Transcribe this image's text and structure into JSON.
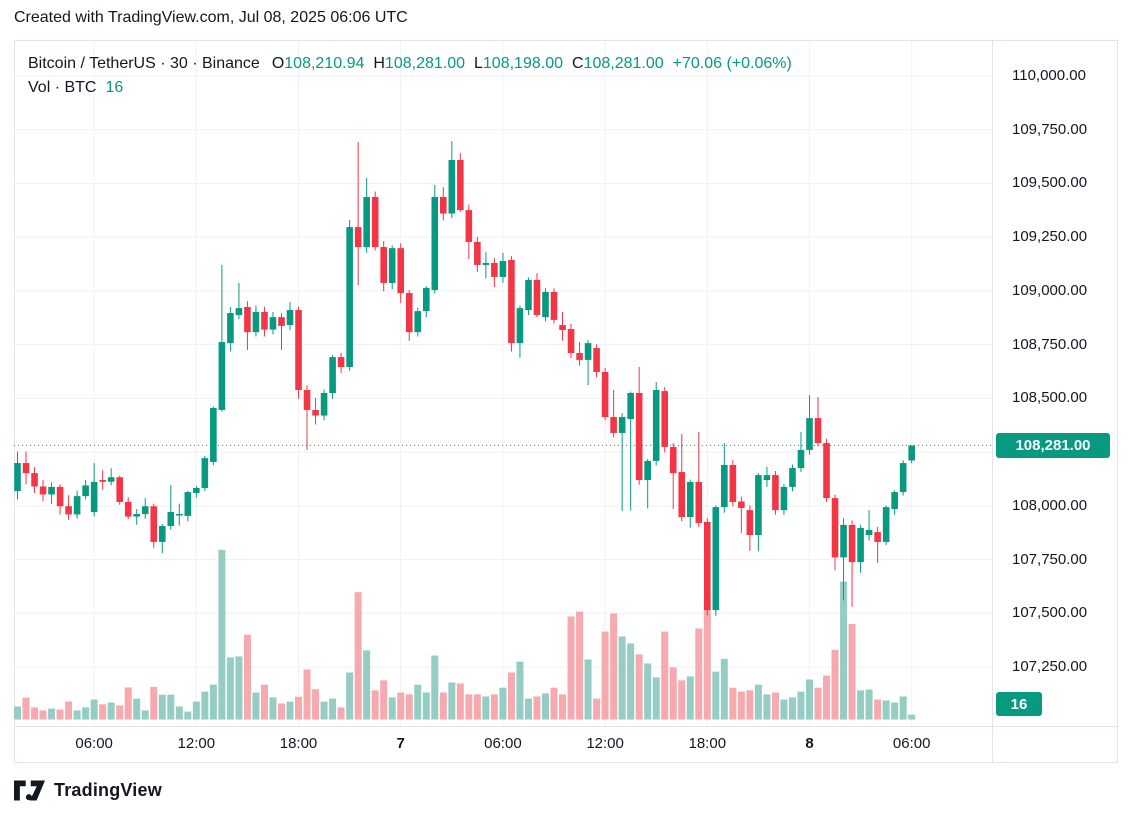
{
  "header": {
    "credit": "Created with TradingView.com, Jul 08, 2025 06:06 UTC"
  },
  "legend": {
    "symbol": "Bitcoin / TetherUS · 30 · Binance",
    "ohlc": [
      {
        "label": "O",
        "value": "108,210.94"
      },
      {
        "label": "H",
        "value": "108,281.00"
      },
      {
        "label": "L",
        "value": "108,198.00"
      },
      {
        "label": "C",
        "value": "108,281.00"
      }
    ],
    "change": "+70.06 (+0.06%)",
    "volume_label": "Vol · BTC",
    "volume_value": "16"
  },
  "footer": {
    "brand": "TradingView"
  },
  "colors": {
    "up": "#089981",
    "down": "#F23645",
    "vol_up": "#95CDC5",
    "vol_down": "#F6A9AE",
    "grid": "#F1F1F4",
    "axis_border": "#E0E3EB",
    "text": "#131722",
    "badge_bg": "#089981",
    "badge_text": "#FFFFFF"
  },
  "chart_data": {
    "type": "candlestick",
    "title": "Bitcoin / TetherUS",
    "interval": "30",
    "exchange": "Binance",
    "volume_unit": "BTC",
    "last_price": 108281.0,
    "last_price_label": "108,281.00",
    "last_volume": 16,
    "last_volume_label": "16",
    "ohlc_last": {
      "o": 108210.94,
      "h": 108281.0,
      "l": 108198.0,
      "c": 108281.0
    },
    "change_label": "+70.06 (+0.06%)",
    "price_axis": {
      "ticks": [
        {
          "price": 110000,
          "label": "110,000.00"
        },
        {
          "price": 109750,
          "label": "109,750.00"
        },
        {
          "price": 109500,
          "label": "109,500.00"
        },
        {
          "price": 109250,
          "label": "109,250.00"
        },
        {
          "price": 109000,
          "label": "109,000.00"
        },
        {
          "price": 108750,
          "label": "108,750.00"
        },
        {
          "price": 108500,
          "label": "108,500.00"
        },
        {
          "price": 108250,
          "label": null
        },
        {
          "price": 108000,
          "label": "108,000.00"
        },
        {
          "price": 107750,
          "label": "107,750.00"
        },
        {
          "price": 107500,
          "label": "107,500.00"
        },
        {
          "price": 107250,
          "label": "107,250.00"
        }
      ]
    },
    "time_axis": {
      "ticks": [
        {
          "index": 9,
          "label": "06:00",
          "bold": false
        },
        {
          "index": 21,
          "label": "12:00",
          "bold": false
        },
        {
          "index": 33,
          "label": "18:00",
          "bold": false
        },
        {
          "index": 45,
          "label": "7",
          "bold": true
        },
        {
          "index": 57,
          "label": "06:00",
          "bold": false
        },
        {
          "index": 69,
          "label": "12:00",
          "bold": false
        },
        {
          "index": 81,
          "label": "18:00",
          "bold": false
        },
        {
          "index": 93,
          "label": "8",
          "bold": true
        },
        {
          "index": 105,
          "label": "06:00",
          "bold": false
        }
      ]
    },
    "candles_format": [
      "open",
      "high",
      "low",
      "close",
      "volume_btc"
    ],
    "candles": [
      [
        108069,
        108252,
        108030,
        108199,
        43
      ],
      [
        108199,
        108252,
        108100,
        108152,
        72
      ],
      [
        108152,
        108180,
        108060,
        108090,
        40
      ],
      [
        108090,
        108120,
        108020,
        108053,
        30
      ],
      [
        108053,
        108110,
        108008,
        108088,
        36
      ],
      [
        108088,
        108100,
        107960,
        107998,
        33
      ],
      [
        107998,
        108050,
        107935,
        107960,
        59
      ],
      [
        107960,
        108070,
        107940,
        108045,
        30
      ],
      [
        108045,
        108120,
        108030,
        108095,
        40
      ],
      [
        107971,
        108199,
        107950,
        108111,
        66
      ],
      [
        108120,
        108165,
        108075,
        108112,
        50
      ],
      [
        108112,
        108175,
        108095,
        108133,
        56
      ],
      [
        108133,
        108140,
        108005,
        108018,
        46
      ],
      [
        108018,
        108040,
        107938,
        107950,
        106
      ],
      [
        107950,
        107985,
        107912,
        107962,
        69
      ],
      [
        107962,
        108036,
        107940,
        107998,
        30
      ],
      [
        107998,
        108010,
        107804,
        107832,
        108
      ],
      [
        107832,
        107915,
        107780,
        107906,
        82
      ],
      [
        107906,
        108097,
        107888,
        107971,
        82
      ],
      [
        107955,
        108010,
        107908,
        107962,
        43
      ],
      [
        107953,
        108070,
        107928,
        108064,
        26
      ],
      [
        108060,
        108092,
        108038,
        108083,
        59
      ],
      [
        108083,
        108232,
        108068,
        108222,
        92
      ],
      [
        108204,
        108462,
        108188,
        108455,
        115
      ],
      [
        108446,
        109121,
        108438,
        108762,
        560
      ],
      [
        108757,
        108925,
        108718,
        108897,
        205
      ],
      [
        108888,
        109037,
        108868,
        108920,
        208
      ],
      [
        108925,
        108952,
        108725,
        108808,
        280
      ],
      [
        108808,
        108932,
        108788,
        108902,
        89
      ],
      [
        108902,
        108926,
        108788,
        108820,
        115
      ],
      [
        108820,
        108902,
        108798,
        108878,
        73
      ],
      [
        108878,
        108896,
        108725,
        108837,
        53
      ],
      [
        108841,
        108948,
        108818,
        108911,
        59
      ],
      [
        108911,
        108926,
        108498,
        108539,
        75
      ],
      [
        108539,
        108562,
        108260,
        108446,
        165
      ],
      [
        108446,
        108502,
        108378,
        108420,
        100
      ],
      [
        108420,
        108542,
        108398,
        108525,
        59
      ],
      [
        108525,
        108702,
        108498,
        108692,
        69
      ],
      [
        108692,
        108712,
        108618,
        108646,
        40
      ],
      [
        108646,
        109330,
        108628,
        109297,
        155
      ],
      [
        109297,
        109693,
        109027,
        109204,
        420
      ],
      [
        109204,
        109525,
        109178,
        109437,
        228
      ],
      [
        109437,
        109462,
        109188,
        109204,
        96
      ],
      [
        109204,
        109232,
        108998,
        109037,
        129
      ],
      [
        109037,
        109212,
        109008,
        109199,
        73
      ],
      [
        109199,
        109222,
        108944,
        108990,
        89
      ],
      [
        108990,
        109004,
        108768,
        108808,
        83
      ],
      [
        108808,
        108922,
        108788,
        108906,
        115
      ],
      [
        108906,
        109022,
        108878,
        109014,
        89
      ],
      [
        109004,
        109493,
        108988,
        109437,
        211
      ],
      [
        109437,
        109482,
        109328,
        109360,
        89
      ],
      [
        109360,
        109697,
        109338,
        109609,
        122
      ],
      [
        109609,
        109641,
        109368,
        109376,
        119
      ],
      [
        109376,
        109402,
        109148,
        109228,
        83
      ],
      [
        109228,
        109252,
        109088,
        109121,
        83
      ],
      [
        109121,
        109182,
        109058,
        109130,
        76
      ],
      [
        109130,
        109152,
        109018,
        109065,
        83
      ],
      [
        109065,
        109177,
        109038,
        109139,
        105
      ],
      [
        109144,
        109162,
        108718,
        108757,
        155
      ],
      [
        108757,
        108932,
        108688,
        108920,
        191
      ],
      [
        108911,
        109062,
        108888,
        109051,
        69
      ],
      [
        109051,
        109083,
        108878,
        108888,
        76
      ],
      [
        108878,
        109012,
        108858,
        108995,
        86
      ],
      [
        108995,
        109012,
        108848,
        108865,
        105
      ],
      [
        108841,
        108902,
        108768,
        108818,
        83
      ],
      [
        108823,
        108846,
        108688,
        108711,
        340
      ],
      [
        108711,
        108762,
        108652,
        108679,
        356
      ],
      [
        108679,
        108772,
        108562,
        108757,
        198
      ],
      [
        108734,
        108752,
        108598,
        108623,
        69
      ],
      [
        108623,
        108642,
        108398,
        108413,
        290
      ],
      [
        108413,
        108539,
        108318,
        108339,
        350
      ],
      [
        108339,
        108432,
        107975,
        108413,
        274
      ],
      [
        108404,
        108532,
        107978,
        108525,
        251
      ],
      [
        108525,
        108646,
        108098,
        108120,
        215
      ],
      [
        108120,
        108218,
        107988,
        108209,
        185
      ],
      [
        108209,
        108576,
        108188,
        108539,
        139
      ],
      [
        108534,
        108552,
        108248,
        108274,
        290
      ],
      [
        108274,
        108292,
        107985,
        108152,
        172
      ],
      [
        108157,
        108334,
        107928,
        107948,
        129
      ],
      [
        107948,
        108122,
        107898,
        108111,
        142
      ],
      [
        108111,
        108343,
        107902,
        107920,
        300
      ],
      [
        107925,
        107942,
        107490,
        107515,
        385
      ],
      [
        107515,
        108002,
        107488,
        107994,
        158
      ],
      [
        107994,
        108292,
        107968,
        108190,
        200
      ],
      [
        108190,
        108212,
        107998,
        108018,
        105
      ],
      [
        108020,
        108042,
        107874,
        107990,
        92
      ],
      [
        107980,
        108002,
        107790,
        107864,
        96
      ],
      [
        107864,
        108152,
        107788,
        108143,
        115
      ],
      [
        108120,
        108182,
        108088,
        108143,
        83
      ],
      [
        108143,
        108162,
        107958,
        107980,
        89
      ],
      [
        107980,
        108102,
        107958,
        108088,
        66
      ],
      [
        108088,
        108192,
        108068,
        108176,
        73
      ],
      [
        108176,
        108343,
        108158,
        108260,
        92
      ],
      [
        108260,
        108515,
        108238,
        108408,
        132
      ],
      [
        108408,
        108506,
        108278,
        108292,
        105
      ],
      [
        108292,
        108312,
        108018,
        108036,
        145
      ],
      [
        108036,
        108052,
        107700,
        107760,
        230
      ],
      [
        107760,
        107942,
        107560,
        107911,
        455
      ],
      [
        107911,
        107932,
        107530,
        107738,
        315
      ],
      [
        107738,
        107912,
        107688,
        107897,
        96
      ],
      [
        107864,
        107980,
        107838,
        107888,
        99
      ],
      [
        107878,
        107902,
        107734,
        107832,
        66
      ],
      [
        107832,
        108002,
        107818,
        107994,
        63
      ],
      [
        107985,
        108072,
        107958,
        108064,
        56
      ],
      [
        108064,
        108212,
        108048,
        108199,
        76
      ],
      [
        108210.94,
        108281,
        108198,
        108281,
        16
      ]
    ]
  }
}
